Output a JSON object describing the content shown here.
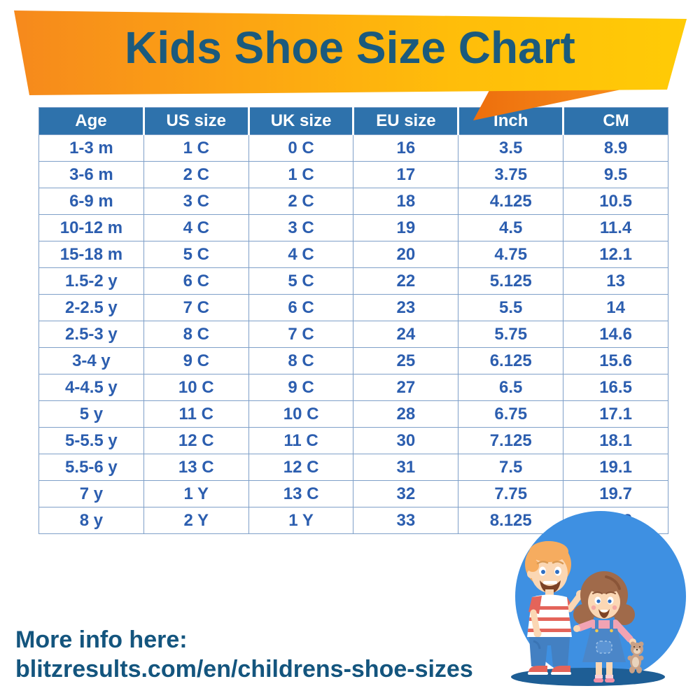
{
  "banner": {
    "title": "Kids Shoe Size Chart"
  },
  "chart_data": {
    "type": "table",
    "title": "Kids Shoe Size Chart",
    "columns": [
      "Age",
      "US size",
      "UK size",
      "EU size",
      "Inch",
      "CM"
    ],
    "rows": [
      [
        "1-3 m",
        "1 C",
        "0 C",
        "16",
        "3.5",
        "8.9"
      ],
      [
        "3-6 m",
        "2 C",
        "1 C",
        "17",
        "3.75",
        "9.5"
      ],
      [
        "6-9 m",
        "3 C",
        "2 C",
        "18",
        "4.125",
        "10.5"
      ],
      [
        "10-12 m",
        "4 C",
        "3 C",
        "19",
        "4.5",
        "11.4"
      ],
      [
        "15-18 m",
        "5 C",
        "4 C",
        "20",
        "4.75",
        "12.1"
      ],
      [
        "1.5-2 y",
        "6 C",
        "5 C",
        "22",
        "5.125",
        "13"
      ],
      [
        "2-2.5 y",
        "7 C",
        "6 C",
        "23",
        "5.5",
        "14"
      ],
      [
        "2.5-3 y",
        "8 C",
        "7 C",
        "24",
        "5.75",
        "14.6"
      ],
      [
        "3-4 y",
        "9 C",
        "8 C",
        "25",
        "6.125",
        "15.6"
      ],
      [
        "4-4.5 y",
        "10 C",
        "9 C",
        "27",
        "6.5",
        "16.5"
      ],
      [
        "5 y",
        "11 C",
        "10 C",
        "28",
        "6.75",
        "17.1"
      ],
      [
        "5-5.5 y",
        "12 C",
        "11 C",
        "30",
        "7.125",
        "18.1"
      ],
      [
        "5.5-6 y",
        "13 C",
        "12 C",
        "31",
        "7.5",
        "19.1"
      ],
      [
        "7 y",
        "1 Y",
        "13 C",
        "32",
        "7.75",
        "19.7"
      ],
      [
        "8 y",
        "2 Y",
        "1 Y",
        "33",
        "8.125",
        "20.6"
      ]
    ]
  },
  "footer": {
    "more_info": "More info here:",
    "url": "blitzresults.com/en/childrens-shoe-sizes"
  },
  "illustration": {
    "description": "boy and girl with teddy bear standing on blue circle"
  },
  "colors": {
    "banner_orange": "#F6891C",
    "banner_yellow": "#FFCB06",
    "banner_fold": "#ED6F0D",
    "title_text": "#1B5A7D",
    "header_bg": "#2E72AC",
    "header_text": "#FFFFFF",
    "cell_text": "#2C5EAF",
    "table_border": "#7FA0C8",
    "footer_text": "#14557E",
    "circle_blue": "#3E90E2",
    "shadow_blue": "#1E5E95"
  }
}
